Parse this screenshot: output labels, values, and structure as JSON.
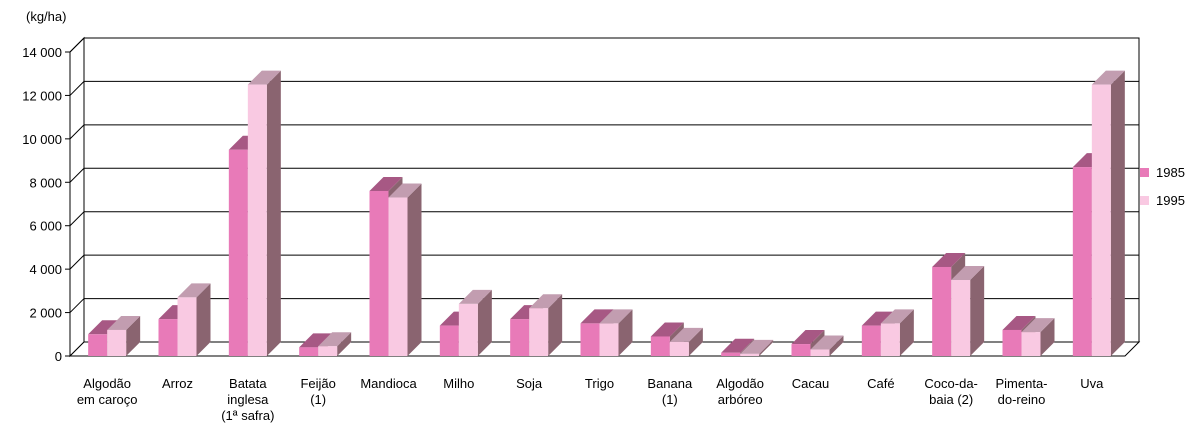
{
  "chart_data": {
    "type": "bar",
    "title": "",
    "unit_label": "(kg/ha)",
    "ylabel": "(kg/ha)",
    "xlabel": "",
    "ylim": [
      0,
      14000
    ],
    "y_ticks": [
      "0",
      "2 000",
      "4 000",
      "6 000",
      "8 000",
      "10 000",
      "12 000",
      "14 000"
    ],
    "y_tick_values": [
      0,
      2000,
      4000,
      6000,
      8000,
      10000,
      12000,
      14000
    ],
    "grid": true,
    "three_d": true,
    "legend_position": "right",
    "categories": [
      [
        "Algodão",
        "em caroço"
      ],
      [
        "Arroz"
      ],
      [
        "Batata",
        "inglesa",
        "(1ª safra)"
      ],
      [
        "Feijão",
        "(1)"
      ],
      [
        "Mandioca"
      ],
      [
        "Milho"
      ],
      [
        "Soja"
      ],
      [
        "Trigo"
      ],
      [
        "Banana",
        "(1)"
      ],
      [
        "Algodão",
        "arbóreo"
      ],
      [
        "Cacau"
      ],
      [
        "Café"
      ],
      [
        "Coco-da-",
        "baia (2)"
      ],
      [
        "Pimenta-",
        "do-reino"
      ],
      [
        "Uva"
      ]
    ],
    "series": [
      {
        "name": "1985",
        "color": "#e87ab8",
        "values": [
          1000,
          1700,
          9500,
          400,
          7600,
          1400,
          1700,
          1500,
          900,
          150,
          550,
          1400,
          4100,
          1200,
          8700
        ]
      },
      {
        "name": "1995",
        "color": "#f9c9e2",
        "values": [
          1200,
          2700,
          12500,
          450,
          7300,
          2400,
          2200,
          1500,
          650,
          100,
          300,
          1500,
          3500,
          1100,
          12500
        ]
      }
    ]
  }
}
